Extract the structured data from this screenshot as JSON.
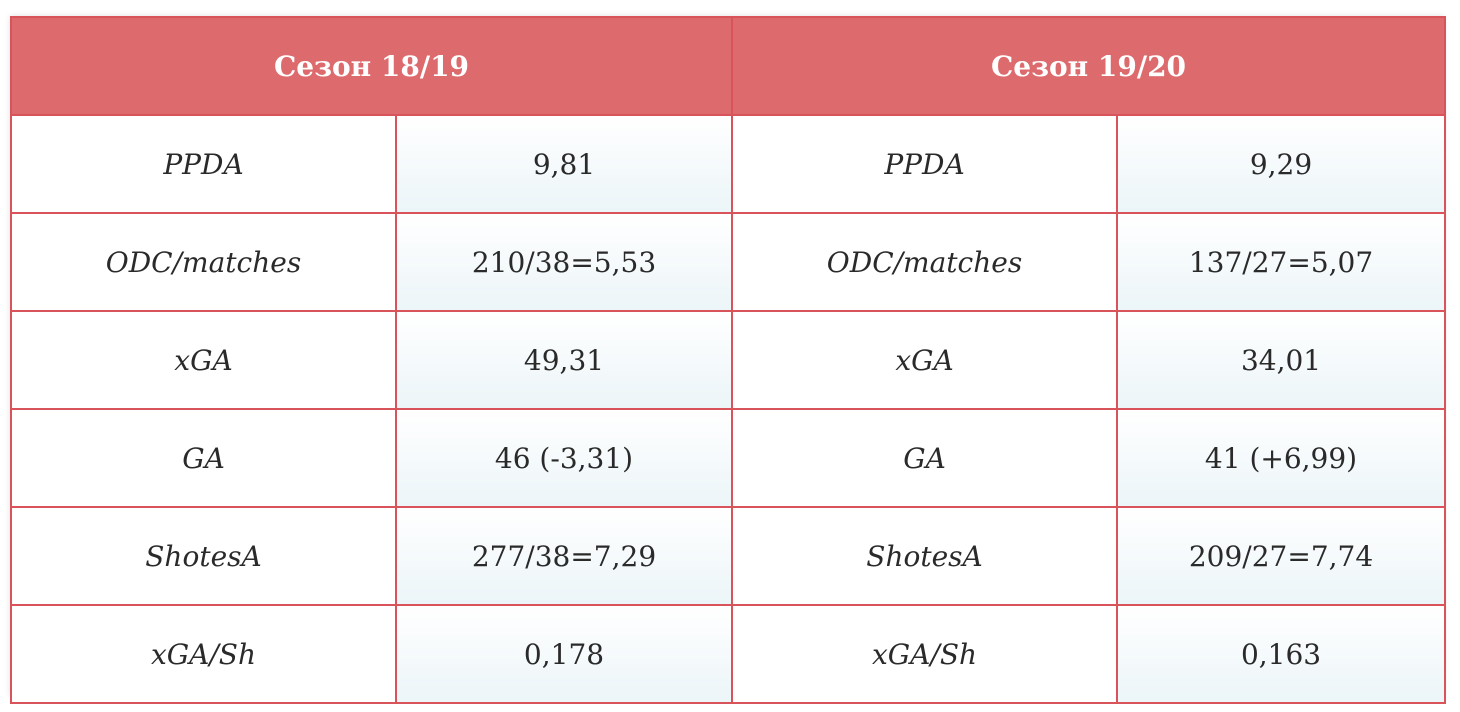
{
  "headers": [
    "Сезон 18/19",
    "Сезон 19/20"
  ],
  "rows": [
    {
      "metric_a": "PPDA",
      "value_a": "9,81",
      "metric_b": "PPDA",
      "value_b": "9,29"
    },
    {
      "metric_a": "ODC/matches",
      "value_a": "210/38=5,53",
      "metric_b": "ODC/matches",
      "value_b": "137/27=5,07"
    },
    {
      "metric_a": "xGA",
      "value_a": "49,31",
      "metric_b": "xGA",
      "value_b": "34,01"
    },
    {
      "metric_a": "GA",
      "value_a": "46 (-3,31)",
      "metric_b": "GA",
      "value_b": "41 (+6,99)"
    },
    {
      "metric_a": "ShotesA",
      "value_a": "277/38=7,29",
      "metric_b": "ShotesA",
      "value_b": "209/27=7,74"
    },
    {
      "metric_a": "xGA/Sh",
      "value_a": "0,178",
      "metric_b": "xGA/Sh",
      "value_b": "0,163"
    }
  ],
  "colors": {
    "header_bg": "#dd6b6d",
    "border": "#d9545a",
    "value_cell_tint": "#ecf5f8"
  }
}
